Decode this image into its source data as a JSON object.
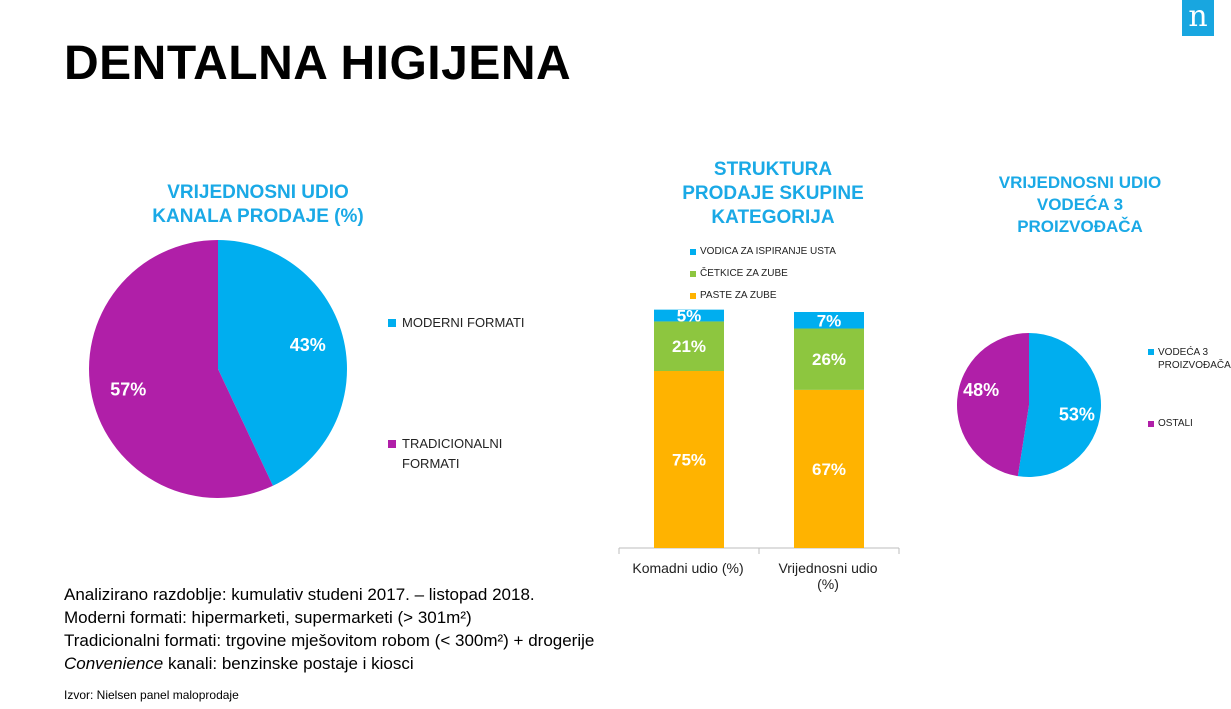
{
  "logo": {
    "letter": "n"
  },
  "page": {
    "title": "DENTALNA HIGIJENA"
  },
  "colors": {
    "blue": "#00aeef",
    "purple": "#b01fa8",
    "green": "#8dc63f",
    "orange": "#ffb300",
    "title": "#1aa9e6"
  },
  "chart_data": [
    {
      "type": "pie",
      "title": [
        "VRIJEDNOSNI UDIO",
        "KANALA PRODAJE (%)"
      ],
      "slices": [
        {
          "name": "MODERNI FORMATI",
          "value": 43,
          "label": "43%",
          "color": "#00aeef"
        },
        {
          "name": "TRADICIONALNI FORMATI",
          "value": 57,
          "label": "57%",
          "color": "#b01fa8"
        }
      ],
      "legend": [
        {
          "lines": [
            "MODERNI FORMATI"
          ],
          "color": "#00aeef"
        },
        {
          "lines": [
            "TRADICIONALNI",
            "FORMATI"
          ],
          "color": "#b01fa8"
        }
      ],
      "legend_position": "right"
    },
    {
      "type": "bar",
      "stacked": true,
      "title": [
        "STRUKTURA",
        "PRODAJE SKUPINE",
        "KATEGORIJA"
      ],
      "categories": [
        "Komadni udio (%)",
        "Vrijednosni udio (%)"
      ],
      "category_lines": [
        [
          "Komadni udio (%)"
        ],
        [
          "Vrijednosni udio",
          "(%)"
        ]
      ],
      "series": [
        {
          "name": "PASTE ZA ZUBE",
          "values": [
            75,
            67
          ],
          "labels": [
            "75%",
            "67%"
          ],
          "color": "#ffb300"
        },
        {
          "name": "ČETKICE ZA ZUBE",
          "values": [
            21,
            26
          ],
          "labels": [
            "21%",
            "26%"
          ],
          "color": "#8dc63f"
        },
        {
          "name": "VODICA ZA ISPIRANJE USTA",
          "values": [
            5,
            7
          ],
          "labels": [
            "5%",
            "7%"
          ],
          "color": "#00aeef"
        }
      ],
      "legend_order": [
        "VODICA ZA ISPIRANJE USTA",
        "ČETKICE ZA ZUBE",
        "PASTE ZA ZUBE"
      ],
      "legend_position": "top",
      "ylim": [
        0,
        100
      ]
    },
    {
      "type": "pie",
      "title": [
        "VRIJEDNOSNI UDIO",
        "VODEĆA 3",
        "PROIZVOĐAČA"
      ],
      "slices": [
        {
          "name": "VODEĆA 3 PROIZVOĐAČA",
          "value": 53,
          "label": "53%",
          "color": "#00aeef"
        },
        {
          "name": "OSTALI",
          "value": 48,
          "label": "48%",
          "color": "#b01fa8"
        }
      ],
      "legend": [
        {
          "lines": [
            "VODEĆA 3",
            "PROIZVOĐAČA"
          ],
          "color": "#00aeef"
        },
        {
          "lines": [
            "OSTALI"
          ],
          "color": "#b01fa8"
        }
      ],
      "legend_position": "right"
    }
  ],
  "notes": {
    "line1": "Analizirano razdoblje: kumulativ studeni 2017. – listopad 2018.",
    "line2": "Moderni formati: hipermarketi, supermarketi (> 301m²)",
    "line3": "Tradicionalni formati: trgovine mješovitom robom (< 300m²) + drogerije",
    "line4_em": "Convenience",
    "line4_rest": " kanali: benzinske postaje i kiosci"
  },
  "source": "Izvor: Nielsen panel maloprodaje"
}
